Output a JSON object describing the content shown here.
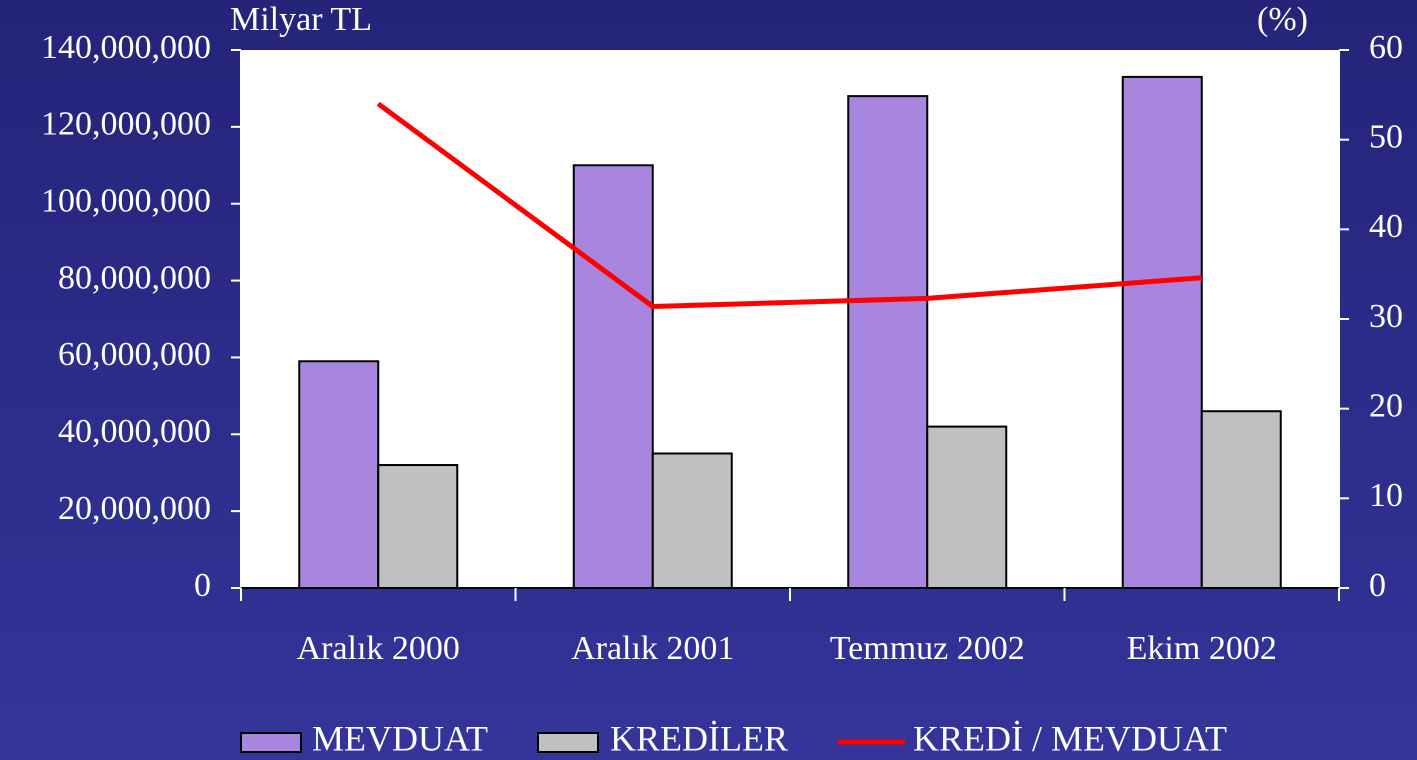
{
  "chart_data": {
    "type": "bar",
    "ylabel": "Milyar TL",
    "y2label": "(%)",
    "categories": [
      "Aralık 2000",
      "Aralık 2001",
      "Temmuz 2002",
      "Ekim 2002"
    ],
    "series": [
      {
        "name": "MEVDUAT",
        "color": "#a886e0",
        "values": [
          59000000,
          110000000,
          128000000,
          133000000
        ]
      },
      {
        "name": "KREDİLER",
        "color": "#c0c0c0",
        "values": [
          32000000,
          35000000,
          42000000,
          46000000
        ]
      },
      {
        "name": "KREDİ / MEVDUAT",
        "color": "#ff0000",
        "type": "line",
        "axis": "y2",
        "values": [
          54.0,
          31.4,
          32.3,
          34.6
        ]
      }
    ],
    "ylim": [
      0,
      140000000
    ],
    "yticks": [
      0,
      {
        "value": 20000000,
        "label": "20,000,000"
      },
      {
        "value": 40000000,
        "label": "40,000,000"
      },
      {
        "value": 60000000,
        "label": "60,000,000"
      },
      {
        "value": 80000000,
        "label": "80,000,000"
      },
      {
        "value": 100000000,
        "label": "100,000,000"
      },
      {
        "value": 120000000,
        "label": "120,000,000"
      },
      {
        "value": 140000000,
        "label": "140,000,000"
      }
    ],
    "y2lim": [
      0,
      60
    ],
    "y2ticks": [
      0,
      10,
      20,
      30,
      40,
      50,
      60
    ],
    "legend": "bottom"
  }
}
